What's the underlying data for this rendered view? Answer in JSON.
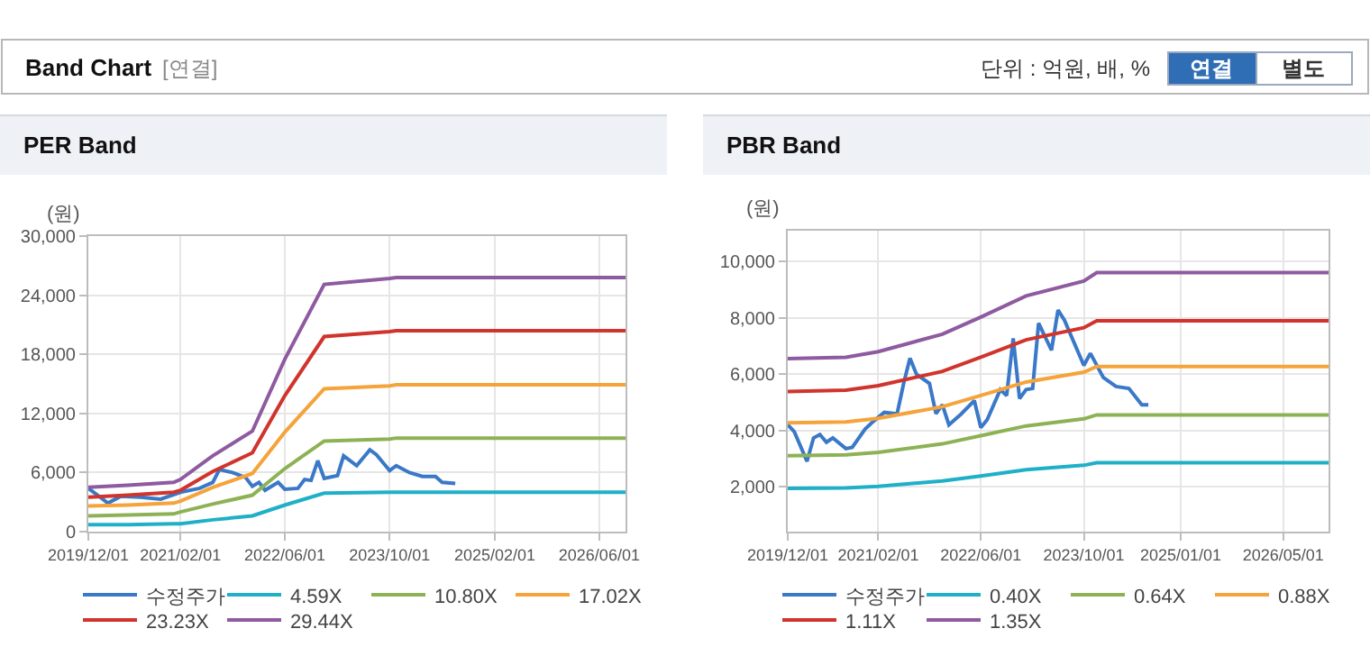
{
  "chart_data": [
    {
      "type": "other",
      "title": "Band Chart",
      "subtitle": "[연결]",
      "annotations": [
        "단위 : 억원, 배, %",
        "연결",
        "별도"
      ]
    },
    {
      "type": "line",
      "title": "PER Band",
      "ylabel": "(원)",
      "grid": true,
      "legend": "bottom",
      "marker": "none",
      "line_style": "solid",
      "xlim": [
        "2019-12-01",
        "2026-10-01"
      ],
      "xticks": [
        {
          "value": "2019-12-01",
          "label": "2019/12/01"
        },
        {
          "value": "2021-02-01",
          "label": "2021/02/01"
        },
        {
          "value": "2022-06-01",
          "label": "2022/06/01"
        },
        {
          "value": "2023-10-01",
          "label": "2023/10/01"
        },
        {
          "value": "2025-02-01",
          "label": "2025/02/01"
        },
        {
          "value": "2026-06-01",
          "label": "2026/06/01"
        }
      ],
      "ylim": [
        0,
        30000
      ],
      "yticks": [
        0,
        {
          "value": 6000,
          "label": "6,000"
        },
        {
          "value": 12000,
          "label": "12,000"
        },
        {
          "value": 18000,
          "label": "18,000"
        },
        {
          "value": 24000,
          "label": "24,000"
        },
        {
          "value": 30000,
          "label": "30,000"
        }
      ],
      "x": [
        "2019-12-01",
        "2020-06-01",
        "2021-01-01",
        "2021-02-01",
        "2021-07-01",
        "2022-01-01",
        "2022-06-01",
        "2022-12-01",
        "2023-10-01",
        "2023-11-01",
        "2026-10-01"
      ],
      "series": [
        {
          "name": "수정주가",
          "color": "#3a78c8",
          "x": [
            "2019-12-01",
            "2020-01-01",
            "2020-03-01",
            "2020-05-01",
            "2020-08-01",
            "2020-11-01",
            "2021-02-01",
            "2021-05-01",
            "2021-07-01",
            "2021-08-01",
            "2021-10-01",
            "2021-12-01",
            "2022-01-01",
            "2022-02-01",
            "2022-03-01",
            "2022-05-01",
            "2022-06-01",
            "2022-08-01",
            "2022-09-01",
            "2022-10-01",
            "2022-11-01",
            "2022-12-01",
            "2023-02-01",
            "2023-03-01",
            "2023-05-01",
            "2023-07-01",
            "2023-08-01",
            "2023-10-01",
            "2023-11-01",
            "2024-01-01",
            "2024-03-01",
            "2024-05-01",
            "2024-06-01",
            "2024-08-01"
          ],
          "values": [
            4400,
            3900,
            2900,
            3600,
            3500,
            3300,
            4000,
            4400,
            5000,
            6300,
            6000,
            5500,
            4600,
            5000,
            4200,
            5000,
            4300,
            4400,
            5300,
            5200,
            7200,
            5400,
            5700,
            7700,
            6700,
            8300,
            7800,
            6200,
            6700,
            6000,
            5600,
            5600,
            5000,
            4900
          ]
        },
        {
          "name": "4.59X",
          "color": "#1fb0c8",
          "values": [
            700,
            700,
            800,
            800,
            1200,
            1600,
            2700,
            3900,
            4000,
            4000,
            4000
          ]
        },
        {
          "name": "10.80X",
          "color": "#8db255",
          "values": [
            1600,
            1700,
            1800,
            2000,
            2800,
            3700,
            6400,
            9200,
            9400,
            9500,
            9500
          ]
        },
        {
          "name": "17.02X",
          "color": "#f5a33a",
          "values": [
            2600,
            2700,
            2900,
            3100,
            4500,
            5900,
            10100,
            14500,
            14800,
            14900,
            14900
          ]
        },
        {
          "name": "23.23X",
          "color": "#d0342c",
          "values": [
            3500,
            3700,
            4000,
            4200,
            6100,
            8000,
            13800,
            19800,
            20300,
            20400,
            20400
          ]
        },
        {
          "name": "29.44X",
          "color": "#8e5aa0",
          "values": [
            4500,
            4700,
            5000,
            5300,
            7700,
            10200,
            17500,
            25100,
            25700,
            25800,
            25800
          ]
        }
      ]
    },
    {
      "type": "line",
      "title": "PBR Band",
      "ylabel": "(원)",
      "grid": true,
      "legend": "bottom",
      "marker": "none",
      "line_style": "solid",
      "xlim": [
        "2019-12-01",
        "2026-12-01"
      ],
      "xticks": [
        {
          "value": "2019-12-01",
          "label": "2019/12/01"
        },
        {
          "value": "2021-02-01",
          "label": "2021/02/01"
        },
        {
          "value": "2022-06-01",
          "label": "2022/06/01"
        },
        {
          "value": "2023-10-01",
          "label": "2023/10/01"
        },
        {
          "value": "2025-01-01",
          "label": "2025/01/01"
        },
        {
          "value": "2026-05-01",
          "label": "2026/05/01"
        }
      ],
      "ylim": [
        400,
        11100
      ],
      "yticks": [
        {
          "value": 2000,
          "label": "2,000"
        },
        {
          "value": 4000,
          "label": "4,000"
        },
        {
          "value": 6000,
          "label": "6,000"
        },
        {
          "value": 8000,
          "label": "8,000"
        },
        {
          "value": 10000,
          "label": "10,000"
        }
      ],
      "x": [
        "2019-12-01",
        "2020-09-01",
        "2021-02-01",
        "2021-12-01",
        "2022-06-01",
        "2023-01-01",
        "2023-10-01",
        "2023-12-01",
        "2026-12-01"
      ],
      "series": [
        {
          "name": "수정주가",
          "color": "#3a78c8",
          "x": [
            "2019-12-01",
            "2020-01-01",
            "2020-03-01",
            "2020-04-01",
            "2020-05-01",
            "2020-06-01",
            "2020-07-01",
            "2020-09-01",
            "2020-10-01",
            "2020-12-01",
            "2021-01-01",
            "2021-03-01",
            "2021-05-01",
            "2021-06-01",
            "2021-07-01",
            "2021-08-01",
            "2021-10-01",
            "2021-11-01",
            "2021-12-01",
            "2022-01-01",
            "2022-03-01",
            "2022-05-01",
            "2022-06-01",
            "2022-07-01",
            "2022-09-01",
            "2022-10-01",
            "2022-11-01",
            "2022-12-01",
            "2023-01-01",
            "2023-02-01",
            "2023-03-01",
            "2023-05-01",
            "2023-06-01",
            "2023-07-01",
            "2023-10-01",
            "2023-11-01",
            "2024-01-01",
            "2024-03-01",
            "2024-05-01",
            "2024-07-01",
            "2024-08-01"
          ],
          "values": [
            4200,
            3950,
            2900,
            3730,
            3850,
            3580,
            3730,
            3350,
            3400,
            4050,
            4270,
            4640,
            4590,
            5670,
            6570,
            5990,
            5670,
            4590,
            4910,
            4200,
            4590,
            5060,
            4100,
            4380,
            5450,
            5240,
            7270,
            5130,
            5450,
            5490,
            7810,
            6850,
            8280,
            7920,
            6310,
            6740,
            5880,
            5560,
            5490,
            4910,
            4910
          ]
        },
        {
          "name": "0.40X",
          "color": "#1fb0c8",
          "values": [
            1940,
            1950,
            2010,
            2200,
            2380,
            2600,
            2760,
            2850,
            2850
          ]
        },
        {
          "name": "0.64X",
          "color": "#8db255",
          "values": [
            3100,
            3130,
            3220,
            3520,
            3810,
            4160,
            4410,
            4550,
            4550
          ]
        },
        {
          "name": "0.88X",
          "color": "#f5a33a",
          "values": [
            4270,
            4300,
            4430,
            4840,
            5240,
            5720,
            6070,
            6270,
            6270
          ]
        },
        {
          "name": "1.11X",
          "color": "#d0342c",
          "values": [
            5380,
            5430,
            5590,
            6100,
            6600,
            7220,
            7650,
            7900,
            7900
          ]
        },
        {
          "name": "1.35X",
          "color": "#8e5aa0",
          "values": [
            6550,
            6600,
            6800,
            7420,
            8030,
            8780,
            9310,
            9610,
            9610
          ]
        }
      ]
    }
  ]
}
